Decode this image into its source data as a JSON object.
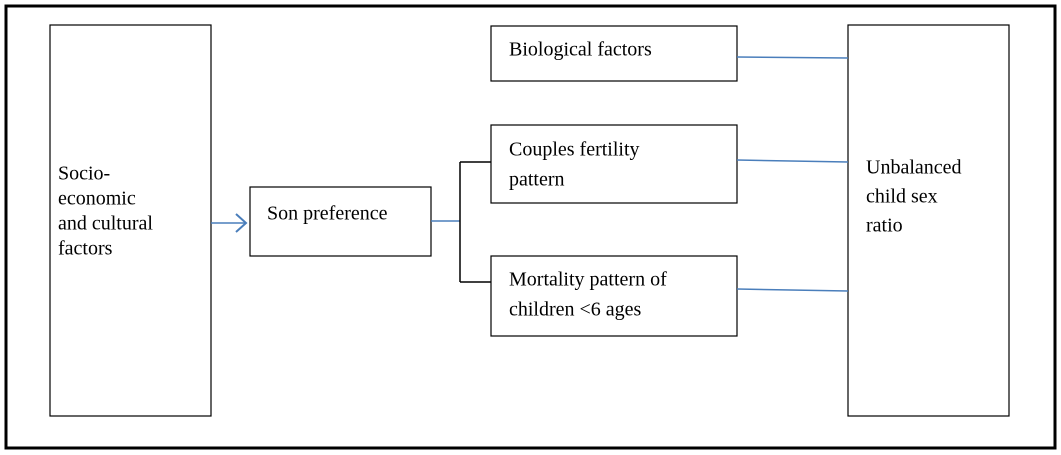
{
  "nodes": [
    {
      "lines": [
        "Socio-",
        "economic",
        "and cultural",
        "factors"
      ]
    },
    {
      "lines": [
        "Son preference"
      ]
    },
    {
      "lines": [
        "Biological factors"
      ]
    },
    {
      "lines": [
        "Couples fertility",
        "pattern"
      ]
    },
    {
      "lines": [
        "Mortality pattern of",
        "children <6 ages"
      ]
    },
    {
      "lines": [
        "Unbalanced",
        "child sex",
        "ratio"
      ]
    }
  ]
}
